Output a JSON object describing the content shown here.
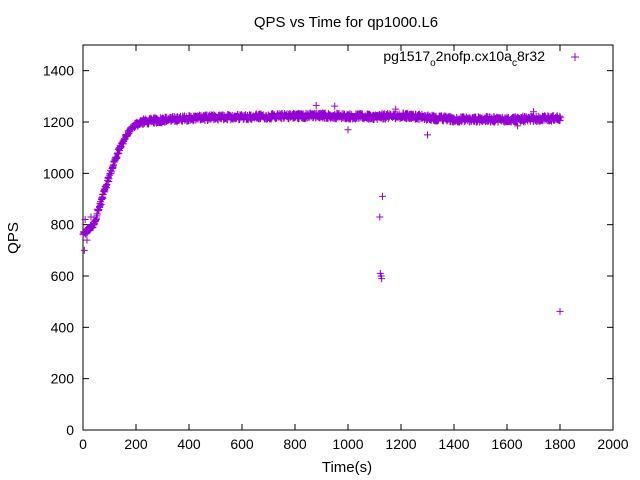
{
  "chart_data": {
    "type": "scatter",
    "title": "QPS vs Time for qp1000.L6",
    "xlabel": "Time(s)",
    "ylabel": "QPS",
    "xlim": [
      0,
      2000
    ],
    "ylim": [
      0,
      1500
    ],
    "xticks": [
      "0",
      "200",
      "400",
      "600",
      "800",
      "1000",
      "1200",
      "1400",
      "1600",
      "1800",
      "2000"
    ],
    "yticks": [
      "0",
      "200",
      "400",
      "600",
      "800",
      "1000",
      "1200",
      "1400"
    ],
    "grid": false,
    "legend_position": "top-right",
    "marker": "+",
    "legend": {
      "parts": [
        {
          "text": "pg1517",
          "sub": false
        },
        {
          "text": "o",
          "sub": true
        },
        {
          "text": "2nofp.cx10a",
          "sub": false
        },
        {
          "text": "c",
          "sub": true
        },
        {
          "text": "8r32",
          "sub": false
        }
      ]
    },
    "series": [
      {
        "color": "#9400d3",
        "profile": [
          [
            0,
            760
          ],
          [
            20,
            780
          ],
          [
            40,
            800
          ],
          [
            60,
            860
          ],
          [
            80,
            930
          ],
          [
            100,
            990
          ],
          [
            120,
            1050
          ],
          [
            140,
            1100
          ],
          [
            160,
            1140
          ],
          [
            180,
            1170
          ],
          [
            200,
            1190
          ],
          [
            220,
            1200
          ],
          [
            260,
            1205
          ],
          [
            400,
            1215
          ],
          [
            600,
            1220
          ],
          [
            900,
            1225
          ],
          [
            1100,
            1220
          ],
          [
            1200,
            1225
          ],
          [
            1400,
            1210
          ],
          [
            1600,
            1210
          ],
          [
            1800,
            1215
          ]
        ],
        "spread": 22,
        "outliers": [
          [
            5,
            700
          ],
          [
            8,
            820
          ],
          [
            15,
            740
          ],
          [
            30,
            830
          ],
          [
            55,
            860
          ],
          [
            1120,
            830
          ],
          [
            1130,
            910
          ],
          [
            1122,
            610
          ],
          [
            1125,
            600
          ],
          [
            1127,
            590
          ],
          [
            1800,
            462
          ],
          [
            1300,
            1150
          ],
          [
            1000,
            1170
          ],
          [
            880,
            1265
          ],
          [
            950,
            1262
          ],
          [
            1180,
            1250
          ],
          [
            1640,
            1185
          ],
          [
            1700,
            1240
          ]
        ]
      }
    ]
  }
}
